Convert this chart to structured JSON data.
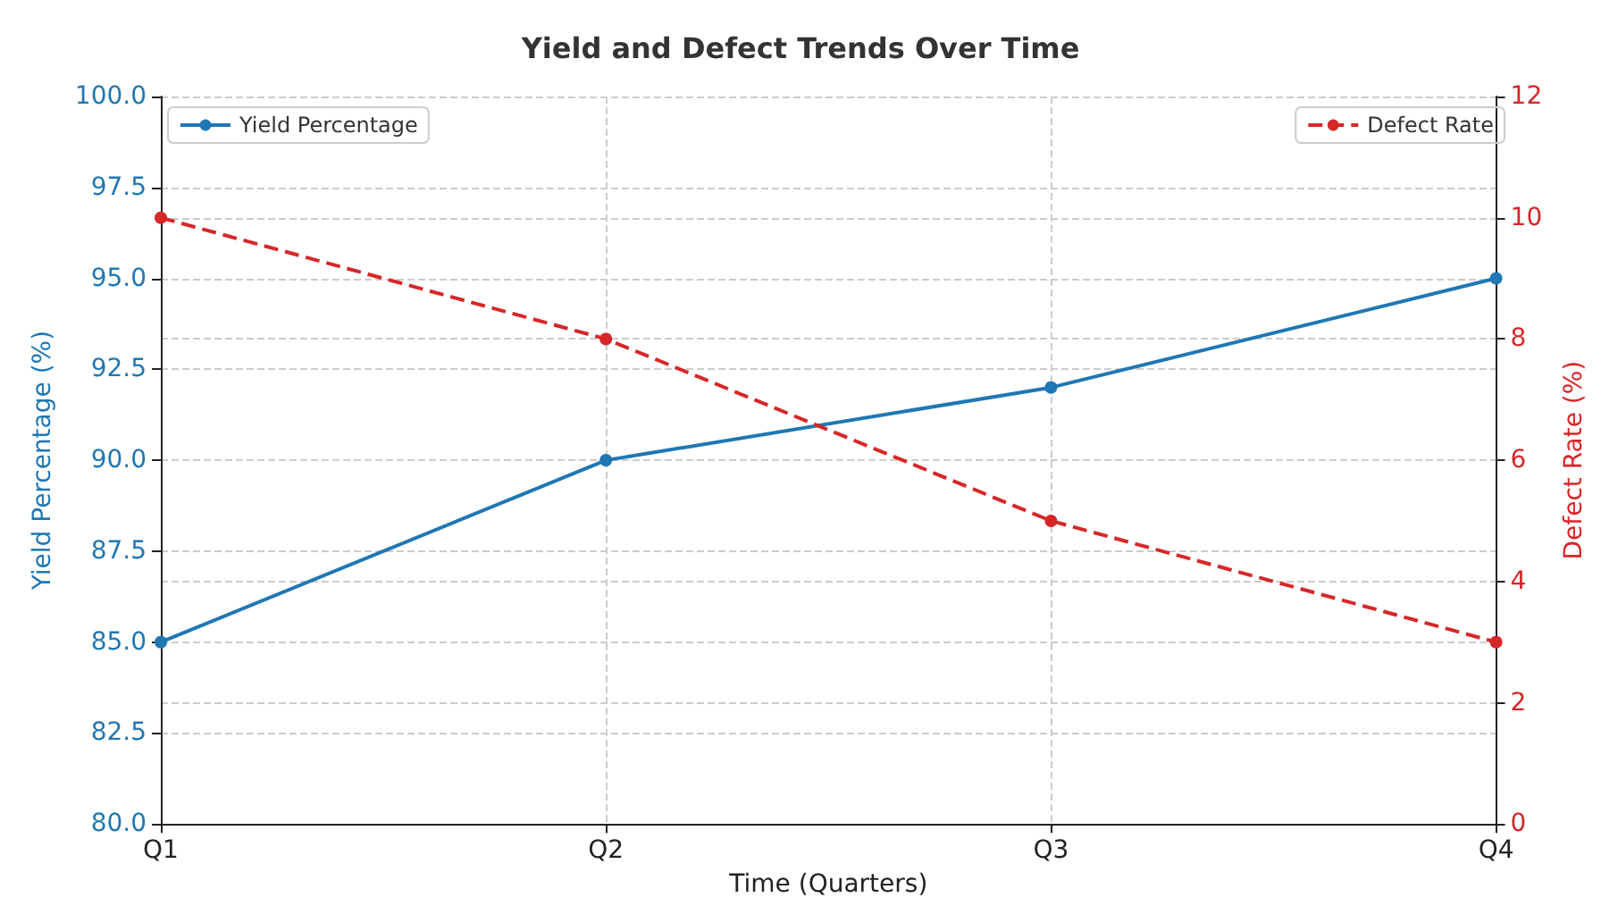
{
  "chart_data": {
    "type": "line",
    "title": "Yield and Defect Trends Over Time",
    "xlabel": "Time (Quarters)",
    "ylabel": "Yield Percentage (%)",
    "y2label": "Defect Rate (%)",
    "categories": [
      "Q1",
      "Q2",
      "Q3",
      "Q4"
    ],
    "series": [
      {
        "name": "Yield Percentage",
        "color": "#1f77b4",
        "values": [
          85,
          90,
          92,
          95
        ],
        "line_style": "solid"
      },
      {
        "name": "Defect Rate",
        "color": "#d62728",
        "values": [
          10,
          8,
          5,
          3
        ],
        "axis": "y2",
        "line_style": "dashed"
      }
    ],
    "ylim": [
      80,
      100
    ],
    "yticks": [
      {
        "value": 80,
        "label": "80.0"
      },
      {
        "value": 82.5,
        "label": "82.5"
      },
      {
        "value": 85,
        "label": "85.0"
      },
      {
        "value": 87.5,
        "label": "87.5"
      },
      {
        "value": 90,
        "label": "90.0"
      },
      {
        "value": 92.5,
        "label": "92.5"
      },
      {
        "value": 95,
        "label": "95.0"
      },
      {
        "value": 97.5,
        "label": "97.5"
      },
      {
        "value": 100,
        "label": "100.0"
      }
    ],
    "y2lim": [
      0,
      12
    ],
    "y2ticks": [
      0,
      2,
      4,
      6,
      8,
      10,
      12
    ],
    "grid": true,
    "legend": "top",
    "marker": "circle"
  }
}
